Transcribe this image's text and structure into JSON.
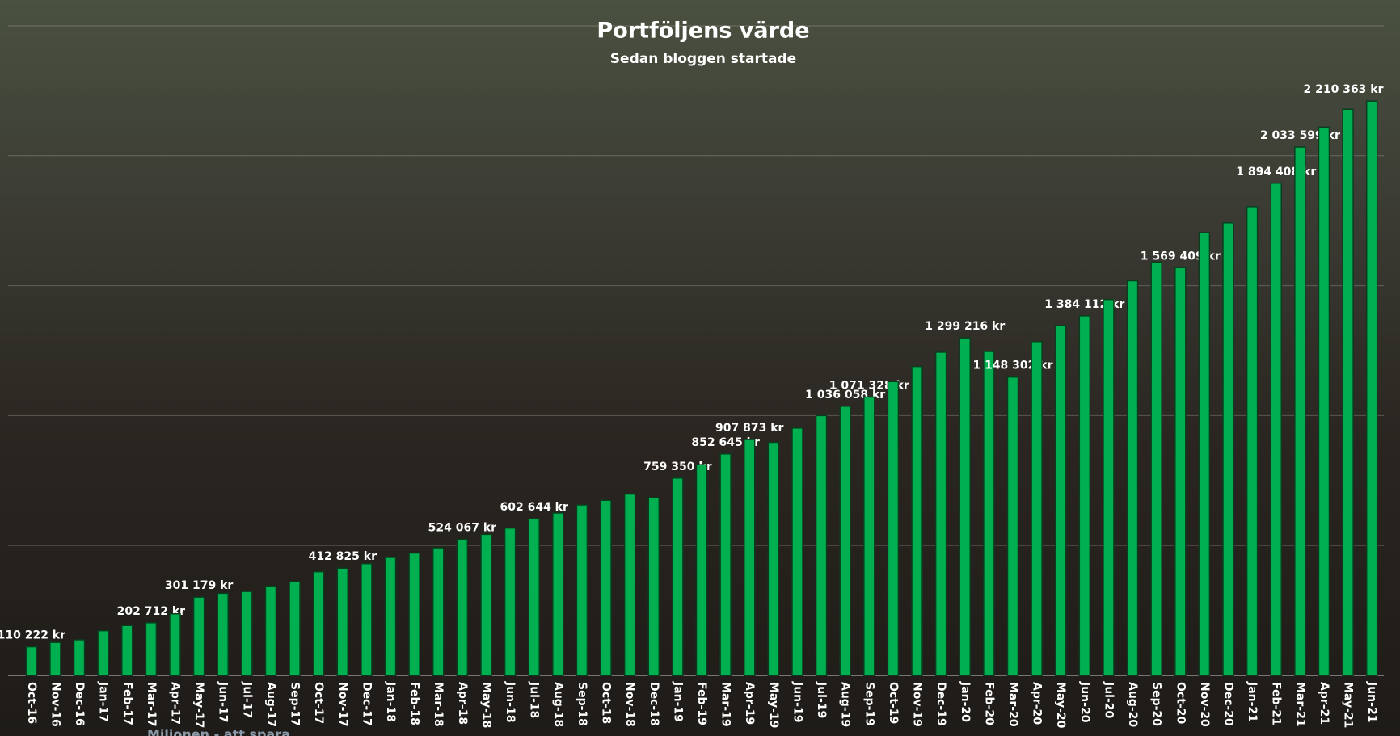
{
  "chart_data": {
    "type": "bar",
    "title": "Portföljens värde",
    "subtitle": "Sedan bloggen startade",
    "watermark": "Miljonen - att spara",
    "categories": [
      "Oct-16",
      "Nov-16",
      "Dec-16",
      "Jan-17",
      "Feb-17",
      "Mar-17",
      "Apr-17",
      "May-17",
      "Jun-17",
      "Jul-17",
      "Aug-17",
      "Sep-17",
      "Oct-17",
      "Nov-17",
      "Dec-17",
      "Jan-18",
      "Feb-18",
      "Mar-18",
      "Apr-18",
      "May-18",
      "Jun-18",
      "Jul-18",
      "Aug-18",
      "Sep-18",
      "Oct-18",
      "Nov-18",
      "Dec-18",
      "Jan-19",
      "Feb-19",
      "Mar-19",
      "Apr-19",
      "May-19",
      "Jun-19",
      "Jul-19",
      "Aug-19",
      "Sep-19",
      "Oct-19",
      "Nov-19",
      "Dec-19",
      "Jan-20",
      "Feb-20",
      "Mar-20",
      "Apr-20",
      "May-20",
      "Jun-20",
      "Jul-20",
      "Aug-20",
      "Sep-20",
      "Oct-20",
      "Nov-20",
      "Dec-20",
      "Jan-21",
      "Feb-21",
      "Mar-21",
      "Apr-21",
      "May-21",
      "Jun-21"
    ],
    "values": [
      110222,
      127000,
      137000,
      172000,
      192000,
      202712,
      237000,
      301179,
      316000,
      323000,
      344000,
      361000,
      399000,
      412825,
      430000,
      454000,
      471000,
      491000,
      524067,
      543000,
      567000,
      602644,
      625000,
      656000,
      674000,
      698000,
      684000,
      759350,
      811000,
      852645,
      907873,
      897000,
      952000,
      1000000,
      1036058,
      1071328,
      1131000,
      1189000,
      1244000,
      1299216,
      1247000,
      1148302,
      1285000,
      1347000,
      1384112,
      1447000,
      1519000,
      1591000,
      1569409,
      1704000,
      1742000,
      1804000,
      1894408,
      2033599,
      2110000,
      2179000,
      2210363
    ],
    "value_labels": [
      "110 222 kr",
      null,
      null,
      null,
      null,
      "202 712 kr",
      null,
      "301 179 kr",
      null,
      null,
      null,
      null,
      null,
      "412 825 kr",
      null,
      null,
      null,
      null,
      "524 067 kr",
      null,
      null,
      "602 644 kr",
      null,
      null,
      null,
      null,
      null,
      "759 350 kr",
      null,
      "852 645 kr",
      "907 873 kr",
      null,
      null,
      null,
      "1 036 058 kr",
      "1 071 328 kr",
      null,
      null,
      null,
      "1 299 216 kr",
      null,
      "1 148 302 kr",
      null,
      null,
      "1 384 112 kr",
      null,
      null,
      null,
      "1 569 409 kr",
      null,
      null,
      null,
      "1 894 408 kr",
      "2 033 599 kr",
      null,
      null,
      "2 210 363 kr"
    ],
    "color": "#00b050",
    "ylim": [
      0,
      2500000
    ],
    "yticks": [
      0,
      500000,
      1000000,
      1500000,
      2000000,
      2500000
    ],
    "grid": true
  }
}
